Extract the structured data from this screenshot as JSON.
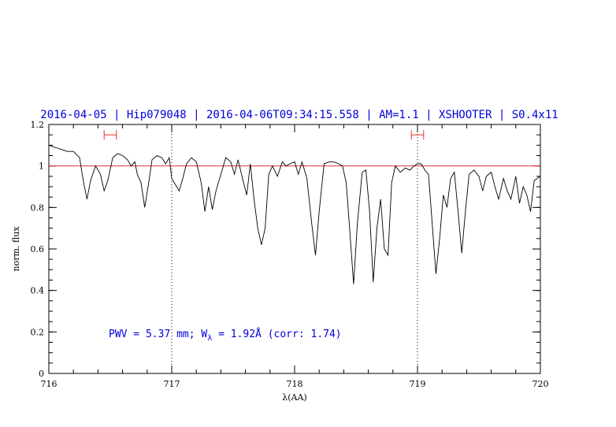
{
  "chart_data": {
    "type": "line",
    "title": "2016-04-05 | Hip079048 | 2016-04-06T09:34:15.558 | AM=1.1 | XSHOOTER | S0.4x11",
    "xlabel": "λ(AA)",
    "ylabel": "norm. flux",
    "xlim": [
      716,
      720
    ],
    "ylim": [
      0,
      1.2
    ],
    "x_ticks": [
      716,
      717,
      718,
      719,
      720
    ],
    "x_tick_labels": [
      "716",
      "717",
      "718",
      "719",
      "720"
    ],
    "y_ticks": [
      0,
      0.2,
      0.4,
      0.6,
      0.8,
      1,
      1.2
    ],
    "y_tick_labels": [
      "0",
      "0.2",
      "0.4",
      "0.6",
      "0.8",
      "1",
      "1.2"
    ],
    "reference_line_y": 1.0,
    "vertical_markers": [
      717,
      719
    ],
    "continuum_ranges": [
      [
        716.45,
        716.55
      ],
      [
        718.95,
        719.05
      ]
    ],
    "continuum_ranges_y": 1.15,
    "annotation": {
      "pwv": "PWV = 5.37 mm;",
      "w": "W",
      "w_sub": "λ",
      "w_rest": " = 1.92Å (corr: 1.74)"
    },
    "colors": {
      "title": "#0000dd",
      "reference": "#dd3333",
      "spectrum": "#000000",
      "markers": "#dd3333"
    },
    "series": [
      {
        "values": [
          [
            716.0,
            1.1
          ],
          [
            716.05,
            1.09
          ],
          [
            716.1,
            1.08
          ],
          [
            716.15,
            1.07
          ],
          [
            716.2,
            1.07
          ],
          [
            716.25,
            1.04
          ],
          [
            716.28,
            0.93
          ],
          [
            716.31,
            0.84
          ],
          [
            716.34,
            0.93
          ],
          [
            716.38,
            1.0
          ],
          [
            716.42,
            0.96
          ],
          [
            716.45,
            0.88
          ],
          [
            716.48,
            0.93
          ],
          [
            716.52,
            1.04
          ],
          [
            716.56,
            1.06
          ],
          [
            716.6,
            1.05
          ],
          [
            716.64,
            1.03
          ],
          [
            716.67,
            1.0
          ],
          [
            716.7,
            1.02
          ],
          [
            716.72,
            0.96
          ],
          [
            716.75,
            0.92
          ],
          [
            716.78,
            0.8
          ],
          [
            716.81,
            0.91
          ],
          [
            716.84,
            1.03
          ],
          [
            716.88,
            1.05
          ],
          [
            716.92,
            1.04
          ],
          [
            716.95,
            1.01
          ],
          [
            716.98,
            1.04
          ],
          [
            717.0,
            0.94
          ],
          [
            717.03,
            0.91
          ],
          [
            717.06,
            0.88
          ],
          [
            717.09,
            0.94
          ],
          [
            717.12,
            1.01
          ],
          [
            717.16,
            1.04
          ],
          [
            717.2,
            1.02
          ],
          [
            717.24,
            0.92
          ],
          [
            717.27,
            0.78
          ],
          [
            717.3,
            0.9
          ],
          [
            717.33,
            0.79
          ],
          [
            717.36,
            0.88
          ],
          [
            717.4,
            0.96
          ],
          [
            717.44,
            1.04
          ],
          [
            717.48,
            1.02
          ],
          [
            717.51,
            0.96
          ],
          [
            717.54,
            1.03
          ],
          [
            717.58,
            0.93
          ],
          [
            717.61,
            0.86
          ],
          [
            717.64,
            1.01
          ],
          [
            717.67,
            0.84
          ],
          [
            717.7,
            0.7
          ],
          [
            717.73,
            0.62
          ],
          [
            717.76,
            0.7
          ],
          [
            717.79,
            0.96
          ],
          [
            717.82,
            1.0
          ],
          [
            717.86,
            0.95
          ],
          [
            717.9,
            1.02
          ],
          [
            717.93,
            1.0
          ],
          [
            717.96,
            1.01
          ],
          [
            718.0,
            1.02
          ],
          [
            718.03,
            0.96
          ],
          [
            718.06,
            1.02
          ],
          [
            718.1,
            0.94
          ],
          [
            718.14,
            0.72
          ],
          [
            718.17,
            0.57
          ],
          [
            718.2,
            0.78
          ],
          [
            718.24,
            1.01
          ],
          [
            718.28,
            1.02
          ],
          [
            718.32,
            1.02
          ],
          [
            718.36,
            1.01
          ],
          [
            718.39,
            1.0
          ],
          [
            718.42,
            0.92
          ],
          [
            718.45,
            0.68
          ],
          [
            718.48,
            0.43
          ],
          [
            718.51,
            0.72
          ],
          [
            718.55,
            0.97
          ],
          [
            718.58,
            0.98
          ],
          [
            718.61,
            0.78
          ],
          [
            718.64,
            0.44
          ],
          [
            718.67,
            0.7
          ],
          [
            718.7,
            0.84
          ],
          [
            718.73,
            0.6
          ],
          [
            718.76,
            0.57
          ],
          [
            718.79,
            0.92
          ],
          [
            718.82,
            1.0
          ],
          [
            718.86,
            0.97
          ],
          [
            718.9,
            0.99
          ],
          [
            718.94,
            0.98
          ],
          [
            718.97,
            1.0
          ],
          [
            719.0,
            1.01
          ],
          [
            719.03,
            1.01
          ],
          [
            719.06,
            0.98
          ],
          [
            719.09,
            0.96
          ],
          [
            719.12,
            0.72
          ],
          [
            719.15,
            0.48
          ],
          [
            719.18,
            0.65
          ],
          [
            719.21,
            0.86
          ],
          [
            719.24,
            0.8
          ],
          [
            719.27,
            0.94
          ],
          [
            719.3,
            0.97
          ],
          [
            719.33,
            0.78
          ],
          [
            719.36,
            0.58
          ],
          [
            719.39,
            0.78
          ],
          [
            719.42,
            0.96
          ],
          [
            719.46,
            0.98
          ],
          [
            719.5,
            0.95
          ],
          [
            719.53,
            0.88
          ],
          [
            719.56,
            0.95
          ],
          [
            719.6,
            0.97
          ],
          [
            719.63,
            0.9
          ],
          [
            719.66,
            0.84
          ],
          [
            719.7,
            0.94
          ],
          [
            719.73,
            0.88
          ],
          [
            719.76,
            0.84
          ],
          [
            719.8,
            0.95
          ],
          [
            719.83,
            0.82
          ],
          [
            719.86,
            0.9
          ],
          [
            719.89,
            0.86
          ],
          [
            719.92,
            0.78
          ],
          [
            719.95,
            0.93
          ],
          [
            720.0,
            0.95
          ]
        ]
      }
    ]
  }
}
